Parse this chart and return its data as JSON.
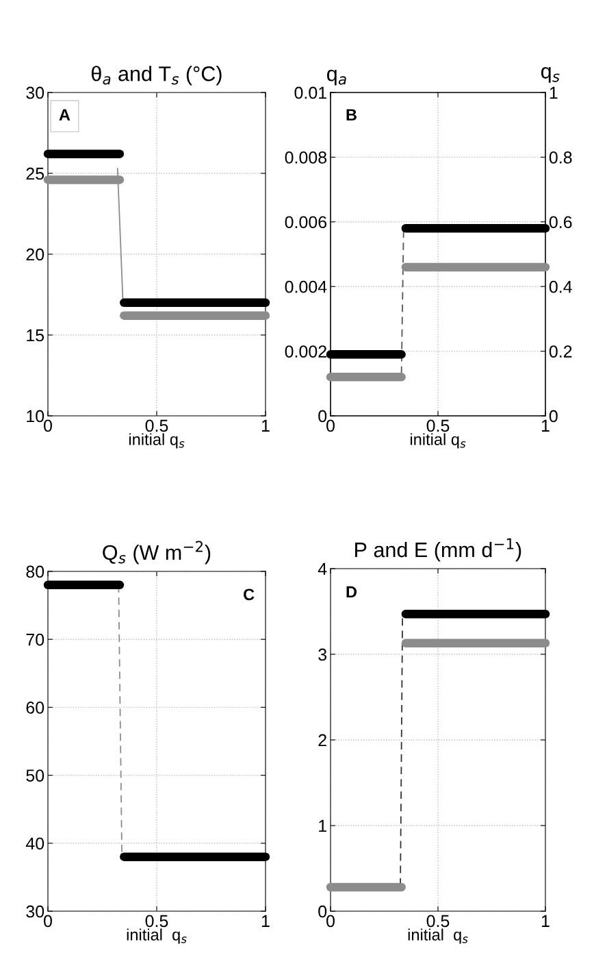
{
  "chart_data": [
    {
      "type": "line",
      "title": "θ$_{a}$ and T$_{s}$ (°C)",
      "xlabel": "initial q$_{s}$",
      "xlim": [
        0,
        1
      ],
      "xticks": [
        0,
        0.5,
        1
      ],
      "ylim": [
        10,
        30
      ],
      "yticks": [
        10,
        15,
        20,
        25,
        30
      ],
      "grid": true,
      "annotations": [
        "A"
      ],
      "series": [
        {
          "color": "#000000",
          "x": [
            0,
            0.33
          ],
          "values": [
            26.2,
            26.2
          ]
        },
        {
          "color": "#000000",
          "x": [
            0.35,
            1
          ],
          "values": [
            17.0,
            17.0
          ]
        },
        {
          "color": "#8c8c8c",
          "x": [
            0,
            0.33
          ],
          "values": [
            24.6,
            24.6
          ]
        },
        {
          "color": "#8c8c8c",
          "x": [
            0.35,
            1
          ],
          "values": [
            16.2,
            16.2
          ]
        },
        {
          "color": "#8c8c8c",
          "line_style": "solid",
          "x": [
            0.32,
            0.345
          ],
          "values": [
            25.3,
            17.0
          ]
        }
      ]
    },
    {
      "type": "line",
      "title": "q$_{a}$",
      "y2label": "q$_{s}$",
      "xlabel": "initial q$_{s}$",
      "xlim": [
        0,
        1
      ],
      "xticks": [
        0,
        0.5,
        1
      ],
      "ylim": [
        0,
        0.01
      ],
      "yticks": [
        0,
        0.002,
        0.004,
        0.006,
        0.008,
        0.01
      ],
      "y2lim": [
        0,
        1
      ],
      "y2ticks": [
        0,
        0.2,
        0.4,
        0.6,
        0.8,
        1
      ],
      "grid": true,
      "annotations": [
        "B"
      ],
      "series": [
        {
          "color": "#000000",
          "x": [
            0,
            0.33
          ],
          "values": [
            0.0019,
            0.0019
          ]
        },
        {
          "color": "#000000",
          "x": [
            0.35,
            1
          ],
          "values": [
            0.0058,
            0.0058
          ]
        },
        {
          "color": "#8c8c8c",
          "axis": "y2",
          "x": [
            0,
            0.33
          ],
          "values": [
            0.12,
            0.12
          ]
        },
        {
          "color": "#8c8c8c",
          "axis": "y2",
          "x": [
            0.35,
            1
          ],
          "values": [
            0.46,
            0.46
          ]
        },
        {
          "color": "#555555",
          "line_style": "dashed",
          "x": [
            0.33,
            0.34
          ],
          "values": [
            0.0013,
            0.0058
          ]
        }
      ]
    },
    {
      "type": "line",
      "title": "Q$_{s}$ (W m$^{−2}$)",
      "xlabel": "initial  q$_{s}$",
      "xlim": [
        0,
        1
      ],
      "xticks": [
        0,
        0.5,
        1
      ],
      "ylim": [
        30,
        80
      ],
      "yticks": [
        30,
        40,
        50,
        60,
        70,
        80
      ],
      "grid": true,
      "annotations": [
        "C"
      ],
      "series": [
        {
          "color": "#000000",
          "x": [
            0,
            0.33
          ],
          "values": [
            78,
            78
          ]
        },
        {
          "color": "#000000",
          "x": [
            0.35,
            1
          ],
          "values": [
            38,
            38
          ]
        },
        {
          "color": "#8c8c8c",
          "line_style": "dashed",
          "x": [
            0.325,
            0.34
          ],
          "values": [
            78,
            38
          ]
        }
      ]
    },
    {
      "type": "line",
      "title": "P and E (mm d$^{−1}$)",
      "xlabel": "initial  q$_{s}$",
      "xlim": [
        0,
        1
      ],
      "xticks": [
        0,
        0.5,
        1
      ],
      "ylim": [
        0,
        4
      ],
      "yticks": [
        0,
        1,
        2,
        3,
        4
      ],
      "grid": true,
      "annotations": [
        "D"
      ],
      "series": [
        {
          "color": "#8c8c8c",
          "x": [
            0,
            0.33
          ],
          "values": [
            0.28,
            0.28
          ]
        },
        {
          "color": "#000000",
          "x": [
            0.35,
            1
          ],
          "values": [
            3.47,
            3.47
          ]
        },
        {
          "color": "#8c8c8c",
          "x": [
            0.35,
            1
          ],
          "values": [
            3.13,
            3.13
          ]
        },
        {
          "color": "#333333",
          "line_style": "dashed",
          "x": [
            0.325,
            0.335
          ],
          "values": [
            0.3,
            3.47
          ]
        }
      ]
    }
  ]
}
